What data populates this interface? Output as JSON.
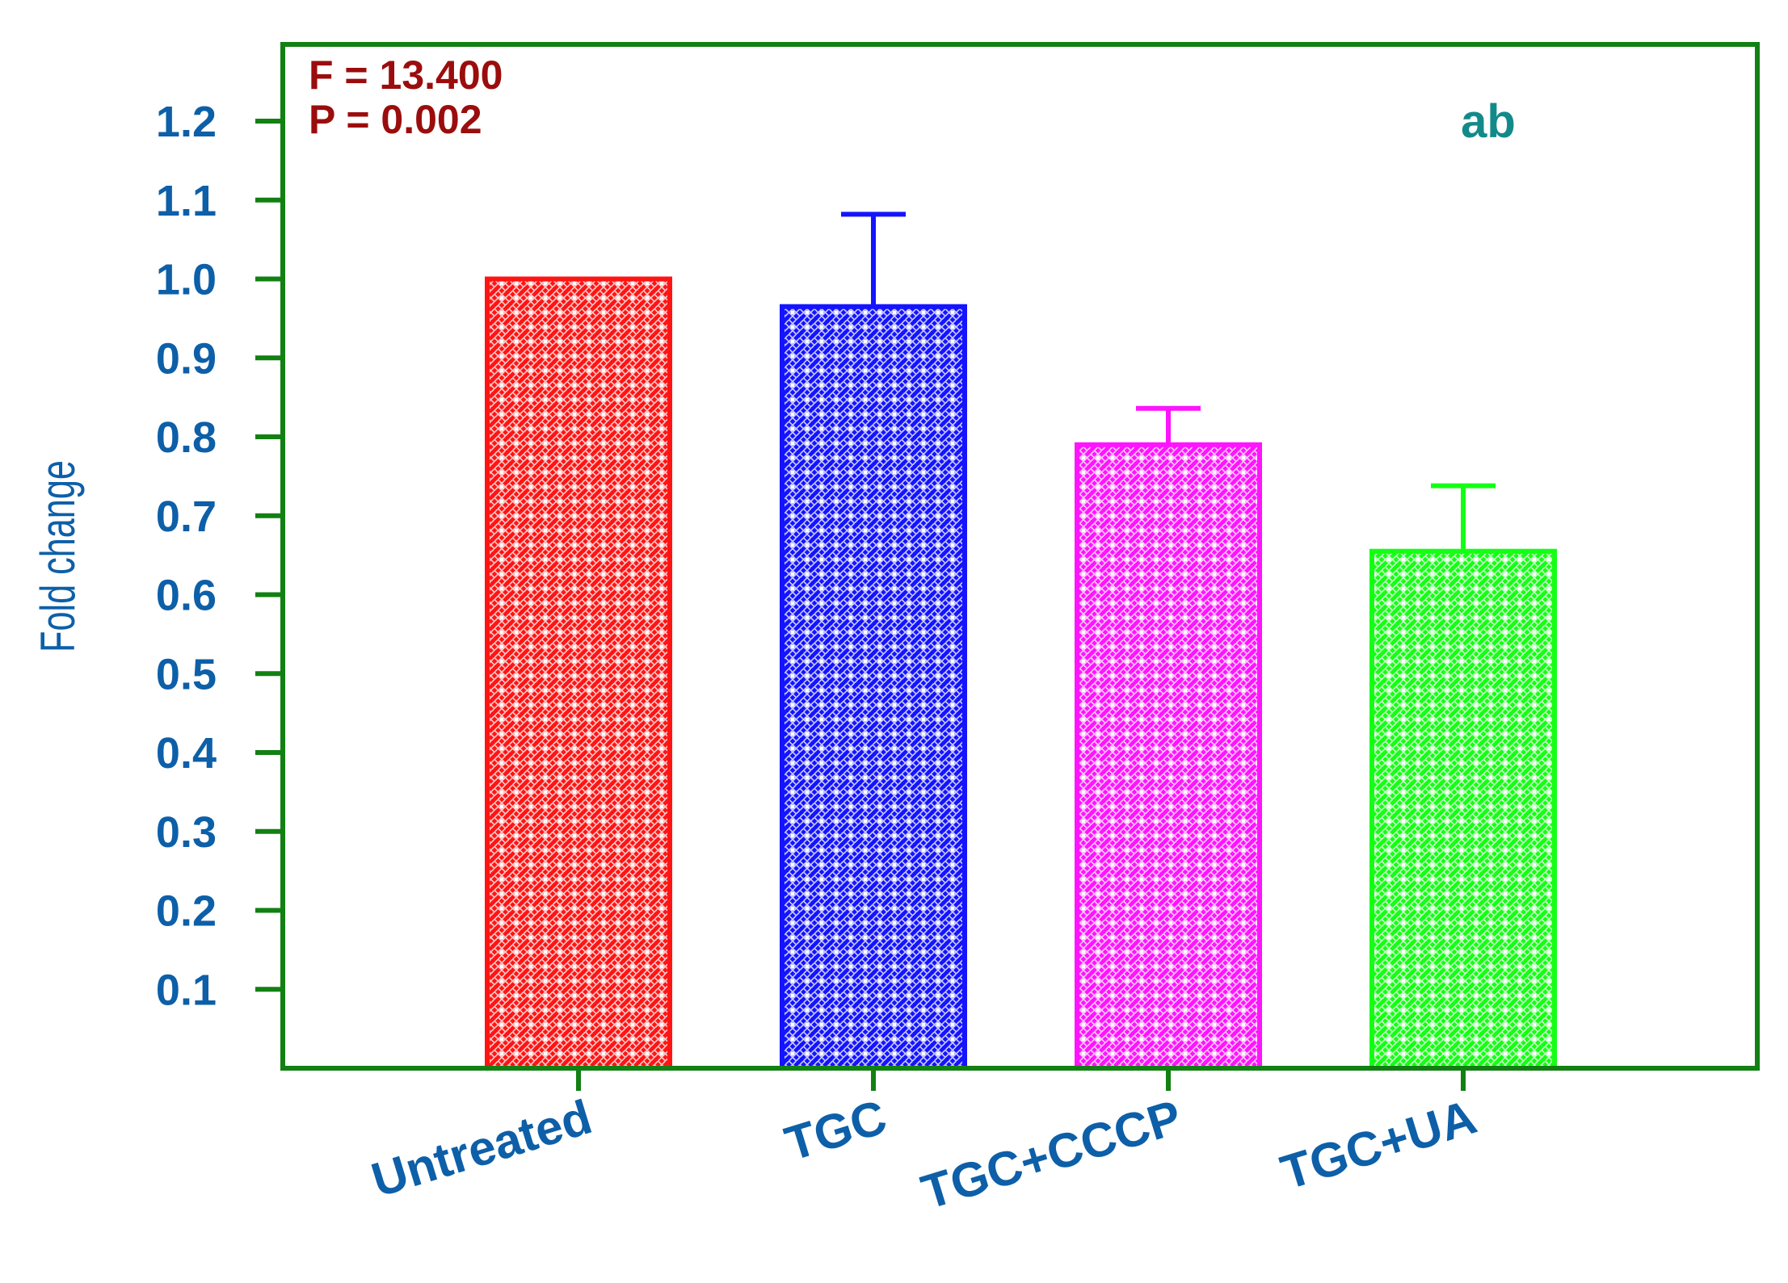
{
  "chart_data": {
    "type": "bar",
    "categories": [
      "Untreated",
      "TGC",
      "TGC+CCCP",
      "TGC+UA"
    ],
    "values": [
      1.0,
      0.965,
      0.79,
      0.655
    ],
    "errors": [
      0,
      0.117,
      0.046,
      0.083
    ],
    "bar_colors": [
      "#ff1414",
      "#1414ff",
      "#ff14ff",
      "#14ff14"
    ],
    "title": "",
    "xlabel": "",
    "ylabel": "Fold change",
    "ylim": [
      0,
      1.2
    ],
    "yticks": [
      0.1,
      0.2,
      0.3,
      0.4,
      0.5,
      0.6,
      0.7,
      0.8,
      0.9,
      1.0,
      1.1,
      1.2
    ],
    "ytick_labels": [
      "0.1",
      "0.2",
      "0.3",
      "0.4",
      "0.5",
      "0.6",
      "0.7",
      "0.8",
      "0.9",
      "1.0",
      "1.1",
      "1.2"
    ],
    "grid": false,
    "annotations": {
      "stat_f": "F = 13.400",
      "stat_p": "P = 0.002",
      "significance": "ab"
    },
    "colors": {
      "frame": "#128012",
      "tick_text": "#0d5fa8",
      "stat_text": "#9b0d0d",
      "sig_text": "#138a8a"
    }
  }
}
